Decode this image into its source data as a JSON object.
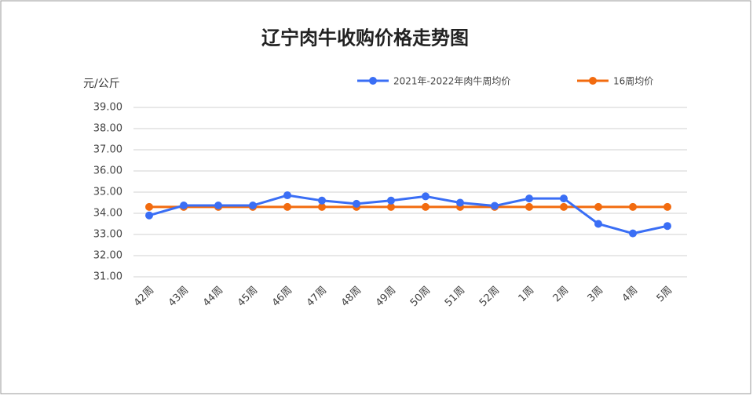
{
  "chart_data": {
    "type": "line",
    "title": "辽宁肉牛收购价格走势图",
    "y_label": "元/公斤",
    "categories": [
      "42周",
      "43周",
      "44周",
      "45周",
      "46周",
      "47周",
      "48周",
      "49周",
      "50周",
      "51周",
      "52周",
      "1周",
      "2周",
      "3周",
      "4周",
      "5周"
    ],
    "series": [
      {
        "name": "2021年-2022年肉牛周均价",
        "color": "#3a6ef5",
        "values": [
          33.9,
          34.37,
          34.37,
          34.37,
          34.85,
          34.6,
          34.45,
          34.6,
          34.8,
          34.5,
          34.35,
          34.7,
          34.7,
          33.5,
          33.05,
          33.4
        ]
      },
      {
        "name": "16周均价",
        "color": "#f26b0f",
        "values": [
          34.3,
          34.3,
          34.3,
          34.3,
          34.3,
          34.3,
          34.3,
          34.3,
          34.3,
          34.3,
          34.3,
          34.3,
          34.3,
          34.3,
          34.3,
          34.3
        ]
      }
    ],
    "ylim": [
      31,
      39
    ],
    "yticks": [
      {
        "value": 31,
        "label": "31.00"
      },
      {
        "value": 32,
        "label": "32.00"
      },
      {
        "value": 33,
        "label": "33.00"
      },
      {
        "value": 34,
        "label": "34.00"
      },
      {
        "value": 35,
        "label": "35.00"
      },
      {
        "value": 36,
        "label": "36.00"
      },
      {
        "value": 37,
        "label": "37.00"
      },
      {
        "value": 38,
        "label": "38.00"
      },
      {
        "value": 39,
        "label": "39.00"
      }
    ],
    "grid": true
  }
}
